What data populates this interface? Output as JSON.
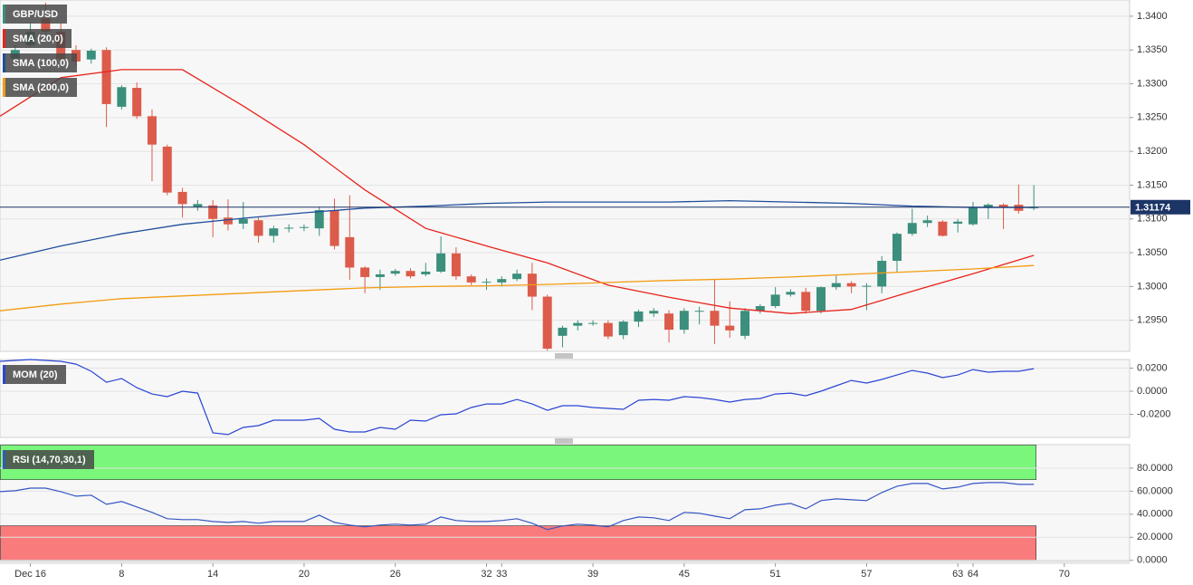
{
  "chart_data": [
    {
      "type": "candlestick",
      "name": "GBP/USD",
      "color": "#3b8f7c",
      "up_color": "#3b8f7c",
      "down_color": "#dc5b4a",
      "x": [
        1,
        2,
        3,
        4,
        5,
        6,
        7,
        8,
        9,
        10,
        11,
        12,
        13,
        14,
        15,
        16,
        17,
        18,
        19,
        20,
        21,
        22,
        23,
        24,
        25,
        26,
        27,
        28,
        29,
        30,
        31,
        32,
        33,
        34,
        35,
        36,
        37,
        38,
        39,
        40,
        41,
        42,
        43,
        44,
        45,
        46,
        47,
        48,
        49,
        50,
        51,
        52,
        53,
        54,
        55,
        56,
        57,
        58,
        59,
        60,
        61,
        62,
        63,
        64,
        65,
        66,
        67,
        68
      ],
      "open": [
        1.3337,
        1.3357,
        1.3397,
        1.3377,
        1.335,
        1.3336,
        1.335,
        1.3266,
        1.3294,
        1.3252,
        1.3207,
        1.314,
        1.3118,
        1.312,
        1.3102,
        1.3093,
        1.3098,
        1.3075,
        1.3086,
        1.3087,
        1.3086,
        1.3113,
        1.3073,
        1.3028,
        1.3014,
        1.3019,
        1.3023,
        1.3018,
        1.3022,
        1.3049,
        1.3015,
        1.3006,
        1.3006,
        1.3011,
        1.3019,
        1.2985,
        1.2927,
        1.2942,
        1.2945,
        1.2946,
        1.2928,
        1.2948,
        1.296,
        1.296,
        1.2936,
        1.2963,
        1.2964,
        1.2942,
        1.2927,
        1.2964,
        1.2971,
        1.2988,
        1.2992,
        1.2964,
        1.2999,
        1.3005,
        1.3,
        1.3,
        1.3038,
        1.3078,
        1.3094,
        1.3096,
        1.3093,
        1.3092,
        1.3117,
        1.3121,
        1.3121,
        1.3116
      ],
      "high": [
        1.3357,
        1.3391,
        1.342,
        1.339,
        1.3357,
        1.3352,
        1.3354,
        1.3298,
        1.3302,
        1.3262,
        1.321,
        1.3146,
        1.3128,
        1.3128,
        1.3129,
        1.3125,
        1.3102,
        1.309,
        1.3092,
        1.3092,
        1.3118,
        1.313,
        1.3135,
        1.303,
        1.3025,
        1.3026,
        1.3027,
        1.3035,
        1.3074,
        1.3058,
        1.3018,
        1.3012,
        1.3015,
        1.3025,
        1.3035,
        1.2988,
        1.2942,
        1.295,
        1.295,
        1.295,
        1.295,
        1.2966,
        1.2968,
        1.2965,
        1.2968,
        1.297,
        1.301,
        1.2978,
        1.2968,
        1.2974,
        1.2999,
        1.2996,
        1.2998,
        1.3,
        1.3016,
        1.3008,
        1.3005,
        1.3045,
        1.308,
        1.3115,
        1.3105,
        1.3098,
        1.31,
        1.3125,
        1.3123,
        1.3123,
        1.3151,
        1.315
      ],
      "low": [
        1.3333,
        1.3354,
        1.3373,
        1.333,
        1.3326,
        1.333,
        1.3236,
        1.3262,
        1.3248,
        1.3156,
        1.3135,
        1.3102,
        1.3112,
        1.3073,
        1.3083,
        1.3085,
        1.3065,
        1.3065,
        1.308,
        1.3082,
        1.3075,
        1.3055,
        1.301,
        1.299,
        1.2995,
        1.3016,
        1.3012,
        1.3015,
        1.302,
        1.301,
        1.3002,
        1.2995,
        1.3,
        1.3008,
        1.2965,
        1.2905,
        1.291,
        1.2935,
        1.2942,
        1.2922,
        1.2922,
        1.294,
        1.2955,
        1.2917,
        1.293,
        1.2944,
        1.2915,
        1.2924,
        1.2922,
        1.296,
        1.2968,
        1.2985,
        1.296,
        1.296,
        1.2995,
        1.299,
        1.2965,
        1.299,
        1.3022,
        1.3075,
        1.3088,
        1.3074,
        1.308,
        1.309,
        1.31,
        1.3085,
        1.3108,
        1.3113
      ],
      "close": [
        1.335,
        1.3377,
        1.3377,
        1.3337,
        1.3333,
        1.3349,
        1.327,
        1.3295,
        1.3252,
        1.321,
        1.3139,
        1.3122,
        1.3122,
        1.31,
        1.3092,
        1.31,
        1.3075,
        1.3086,
        1.3087,
        1.3088,
        1.3113,
        1.306,
        1.3028,
        1.3014,
        1.3018,
        1.3023,
        1.3015,
        1.3022,
        1.3049,
        1.3015,
        1.3006,
        1.3007,
        1.3011,
        1.3019,
        1.2985,
        1.2908,
        1.2939,
        1.2946,
        1.2946,
        1.2926,
        1.2948,
        1.2963,
        1.2964,
        1.2936,
        1.2964,
        1.2964,
        1.2942,
        1.2935,
        1.2964,
        1.2971,
        1.2988,
        1.2992,
        1.2964,
        1.2999,
        1.3005,
        1.3,
        1.3001,
        1.3038,
        1.3078,
        1.3094,
        1.3098,
        1.3075,
        1.3096,
        1.3117,
        1.3121,
        1.3118,
        1.3112,
        1.3117
      ],
      "overlays": [
        {
          "name": "SMA (20,0)",
          "color": "#e8231b",
          "x": [
            0,
            4,
            8,
            12,
            16,
            20,
            24,
            28,
            32,
            36,
            40,
            44,
            48,
            52,
            56,
            60,
            64,
            68
          ],
          "values": [
            1.3252,
            1.3309,
            1.3321,
            1.3321,
            1.3267,
            1.321,
            1.3143,
            1.3086,
            1.306,
            1.3035,
            1.3002,
            1.2984,
            1.2968,
            1.296,
            1.2966,
            1.2993,
            1.3019,
            1.3046
          ]
        },
        {
          "name": "SMA (100,0)",
          "color": "#1f4e9c",
          "x": [
            0,
            4,
            8,
            12,
            16,
            20,
            24,
            28,
            32,
            36,
            40,
            44,
            48,
            52,
            56,
            60,
            64,
            68
          ],
          "values": [
            1.3039,
            1.306,
            1.3078,
            1.3092,
            1.3101,
            1.3109,
            1.3116,
            1.3119,
            1.3123,
            1.3125,
            1.3125,
            1.3125,
            1.3127,
            1.3125,
            1.3123,
            1.3119,
            1.3117,
            1.3117
          ]
        },
        {
          "name": "SMA (200,0)",
          "color": "#f39c12",
          "x": [
            0,
            4,
            8,
            12,
            16,
            20,
            24,
            28,
            32,
            36,
            40,
            44,
            48,
            52,
            56,
            60,
            64,
            68
          ],
          "values": [
            1.2964,
            1.2974,
            1.2982,
            1.2986,
            1.299,
            1.2994,
            1.2998,
            1.3,
            1.3001,
            1.3003,
            1.3006,
            1.3009,
            1.3011,
            1.3014,
            1.3018,
            1.3022,
            1.3026,
            1.3031
          ]
        }
      ],
      "last_price": 1.31174,
      "last_price_color": "#1c3566",
      "xlim": [
        0,
        74.3
      ],
      "ylim": [
        1.2904,
        1.3424
      ],
      "yticks": [
        {
          "value": 1.295,
          "label": "1.2950"
        },
        {
          "value": 1.3,
          "label": "1.3000"
        },
        {
          "value": 1.305,
          "label": "1.3050"
        },
        {
          "value": 1.31,
          "label": "1.3100"
        },
        {
          "value": 1.315,
          "label": "1.3150"
        },
        {
          "value": 1.32,
          "label": "1.3200"
        },
        {
          "value": 1.325,
          "label": "1.3250"
        },
        {
          "value": 1.33,
          "label": "1.3300"
        },
        {
          "value": 1.335,
          "label": "1.3350"
        },
        {
          "value": 1.34,
          "label": "1.3400"
        }
      ],
      "grid": true
    },
    {
      "type": "line",
      "name": "MOM (20)",
      "color": "#2a45d4",
      "x": [
        0,
        1,
        2,
        3,
        4,
        5,
        6,
        7,
        8,
        9,
        10,
        11,
        12,
        13,
        14,
        15,
        16,
        17,
        18,
        19,
        20,
        21,
        22,
        23,
        24,
        25,
        26,
        27,
        28,
        29,
        30,
        31,
        32,
        33,
        34,
        35,
        36,
        37,
        38,
        39,
        40,
        41,
        42,
        43,
        44,
        45,
        46,
        47,
        48,
        49,
        50,
        51,
        52,
        53,
        54,
        55,
        56,
        57,
        58,
        59,
        60,
        61,
        62,
        63,
        64,
        65,
        66,
        67,
        68
      ],
      "values": [
        0.0259,
        0.0267,
        0.0275,
        0.0267,
        0.0259,
        0.0235,
        0.0173,
        0.0078,
        0.011,
        0.0031,
        -0.0024,
        -0.0047,
        0.0,
        -0.0016,
        -0.0361,
        -0.0376,
        -0.0314,
        -0.0298,
        -0.0251,
        -0.0251,
        -0.0251,
        -0.0235,
        -0.0329,
        -0.0353,
        -0.0353,
        -0.0314,
        -0.0329,
        -0.0251,
        -0.0259,
        -0.0204,
        -0.0196,
        -0.0141,
        -0.011,
        -0.011,
        -0.0071,
        -0.011,
        -0.0165,
        -0.0125,
        -0.0125,
        -0.0141,
        -0.0149,
        -0.0157,
        -0.0078,
        -0.0071,
        -0.0078,
        -0.0047,
        -0.0055,
        -0.0071,
        -0.0094,
        -0.0071,
        -0.0063,
        -0.0024,
        -0.0016,
        -0.0039,
        0.0,
        0.0047,
        0.0094,
        0.0071,
        0.0102,
        0.0141,
        0.018,
        0.0157,
        0.0118,
        0.0141,
        0.0188,
        0.0165,
        0.0173,
        0.0173,
        0.0196
      ],
      "xlim": [
        0,
        74.3
      ],
      "ylim": [
        -0.04,
        0.0275
      ],
      "yticks": [
        {
          "value": -0.02,
          "label": "-0.0200"
        },
        {
          "value": 0,
          "label": "0.0000"
        },
        {
          "value": 0.02,
          "label": "0.0200"
        }
      ],
      "grid": true
    },
    {
      "type": "line",
      "name": "RSI (14,70,30,1)",
      "color": "#3556c4",
      "x": [
        0,
        1,
        2,
        3,
        4,
        5,
        6,
        7,
        8,
        9,
        10,
        11,
        12,
        13,
        14,
        15,
        16,
        17,
        18,
        19,
        20,
        21,
        22,
        23,
        24,
        25,
        26,
        27,
        28,
        29,
        30,
        31,
        32,
        33,
        34,
        35,
        36,
        37,
        38,
        39,
        40,
        41,
        42,
        43,
        44,
        45,
        46,
        47,
        48,
        49,
        50,
        51,
        52,
        53,
        54,
        55,
        56,
        57,
        58,
        59,
        60,
        61,
        62,
        63,
        64,
        65,
        66,
        67,
        68
      ],
      "values": [
        59.6,
        60.4,
        62.7,
        62.7,
        59.6,
        55.7,
        56.5,
        48.6,
        51.0,
        46.3,
        41.6,
        36.1,
        35.3,
        35.3,
        33.7,
        32.9,
        33.7,
        32.2,
        33.7,
        33.7,
        33.7,
        39.2,
        32.9,
        30.6,
        29.0,
        30.6,
        31.4,
        30.6,
        31.4,
        37.6,
        34.5,
        33.7,
        33.7,
        34.5,
        36.1,
        32.2,
        26.7,
        29.8,
        31.4,
        30.6,
        29.0,
        34.5,
        37.6,
        36.9,
        34.5,
        41.6,
        40.8,
        38.4,
        36.1,
        43.9,
        44.7,
        47.8,
        49.4,
        44.7,
        51.8,
        53.3,
        52.5,
        51.8,
        58.8,
        64.3,
        66.7,
        66.7,
        62.0,
        63.5,
        66.7,
        67.5,
        67.5,
        65.9,
        65.9
      ],
      "bands": [
        {
          "from": 70,
          "to": 100,
          "color": "#7af77a"
        },
        {
          "from": 0,
          "to": 30,
          "color": "#f97b7b"
        }
      ],
      "xlim": [
        0,
        74.3
      ],
      "ylim": [
        -1,
        100.4
      ],
      "yticks": [
        {
          "value": 0,
          "label": "0.0000"
        },
        {
          "value": 20,
          "label": "20.0000"
        },
        {
          "value": 40,
          "label": "40.0000"
        },
        {
          "value": 60,
          "label": "60.0000"
        },
        {
          "value": 80,
          "label": "80.0000"
        }
      ],
      "xticks": [
        {
          "value": 2,
          "label": "Dec 16"
        },
        8,
        14,
        20,
        26,
        32,
        33,
        39,
        45,
        51,
        57,
        63,
        64,
        70
      ],
      "grid": true
    }
  ]
}
